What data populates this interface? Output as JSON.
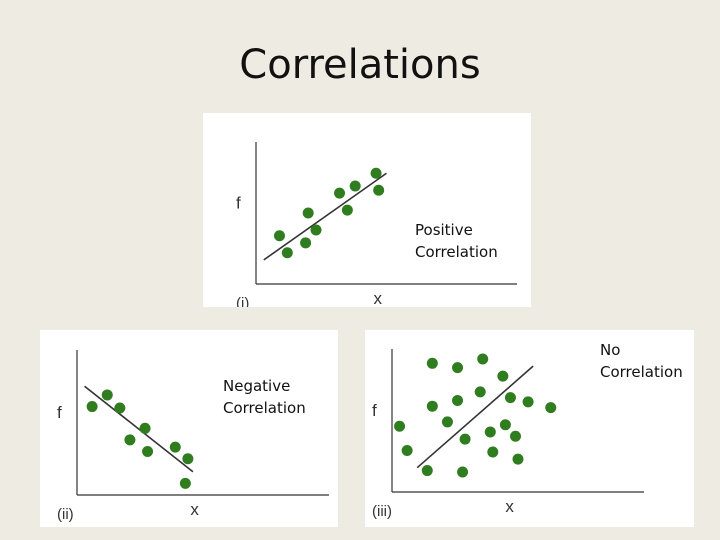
{
  "slide": {
    "title": "Correlations",
    "accent_color": "#2f7d1f"
  },
  "chart_data": [
    {
      "type": "scatter",
      "panel_label": "(i)",
      "xlabel": "x",
      "ylabel": "f",
      "annotation": [
        "Positive",
        "Correlation"
      ],
      "xlim": [
        0,
        10
      ],
      "ylim": [
        0,
        10
      ],
      "points": [
        [
          0.9,
          3.4
        ],
        [
          1.2,
          2.2
        ],
        [
          1.9,
          2.9
        ],
        [
          2.3,
          3.8
        ],
        [
          2.0,
          5.0
        ],
        [
          3.2,
          6.4
        ],
        [
          3.8,
          6.9
        ],
        [
          3.5,
          5.2
        ],
        [
          4.6,
          7.8
        ],
        [
          4.7,
          6.6
        ]
      ],
      "trend": [
        [
          0.3,
          1.7
        ],
        [
          5.0,
          7.8
        ]
      ]
    },
    {
      "type": "scatter",
      "panel_label": "(ii)",
      "xlabel": "x",
      "ylabel": "f",
      "annotation": [
        "Negative",
        "Correlation"
      ],
      "xlim": [
        0,
        10
      ],
      "ylim": [
        0,
        10
      ],
      "points": [
        [
          0.6,
          6.1
        ],
        [
          1.2,
          6.9
        ],
        [
          1.7,
          6.0
        ],
        [
          2.1,
          3.8
        ],
        [
          2.7,
          4.6
        ],
        [
          2.8,
          3.0
        ],
        [
          3.9,
          3.3
        ],
        [
          4.4,
          2.5
        ],
        [
          4.3,
          0.8
        ]
      ],
      "trend": [
        [
          0.3,
          7.5
        ],
        [
          4.6,
          1.6
        ]
      ]
    },
    {
      "type": "scatter",
      "panel_label": "(iii)",
      "xlabel": "x",
      "ylabel": "f",
      "annotation": [
        "No",
        "Correlation"
      ],
      "xlim": [
        0,
        10
      ],
      "ylim": [
        0,
        10
      ],
      "points": [
        [
          0.3,
          4.6
        ],
        [
          0.6,
          2.9
        ],
        [
          1.6,
          9.0
        ],
        [
          2.6,
          8.7
        ],
        [
          3.6,
          9.3
        ],
        [
          4.4,
          8.1
        ],
        [
          1.6,
          6.0
        ],
        [
          2.6,
          6.4
        ],
        [
          3.5,
          7.0
        ],
        [
          4.7,
          6.6
        ],
        [
          5.4,
          6.3
        ],
        [
          6.3,
          5.9
        ],
        [
          2.2,
          4.9
        ],
        [
          2.9,
          3.7
        ],
        [
          3.9,
          4.2
        ],
        [
          4.5,
          4.7
        ],
        [
          4.9,
          3.9
        ],
        [
          4.0,
          2.8
        ],
        [
          5.0,
          2.3
        ],
        [
          1.4,
          1.5
        ],
        [
          2.8,
          1.4
        ]
      ],
      "trend": [
        [
          1.0,
          1.7
        ],
        [
          5.6,
          8.8
        ]
      ]
    }
  ]
}
